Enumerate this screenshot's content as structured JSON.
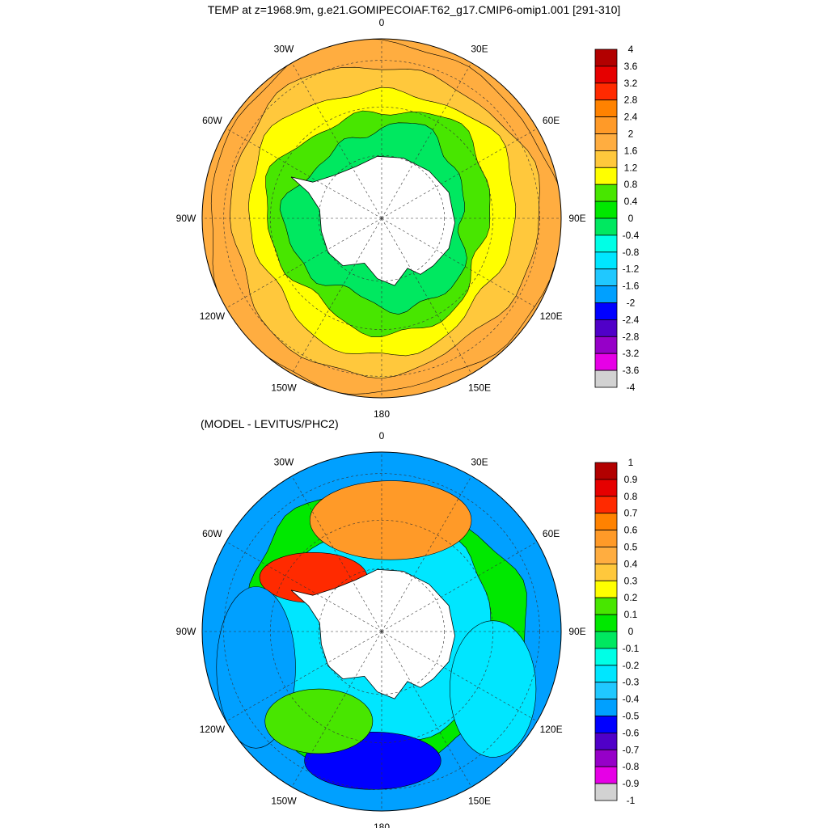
{
  "title": "TEMP at z=1968.9m, g.e21.GOMIPECOIAF.T62_g17.CMIP6-omip1.001 [291-310]",
  "subtitle": "(MODEL - LEVITUS/PHC2)",
  "chart_data": [
    {
      "type": "heatmap",
      "projection": "south polar stereographic",
      "lon_labels": [
        "0",
        "30E",
        "60E",
        "90E",
        "120E",
        "150E",
        "180",
        "150W",
        "120W",
        "90W",
        "60W",
        "30W"
      ],
      "colorbar": {
        "labels": [
          "4",
          "3.6",
          "3.2",
          "2.8",
          "2.4",
          "2",
          "1.6",
          "1.2",
          "0.8",
          "0.4",
          "0",
          "-0.4",
          "-0.8",
          "-1.2",
          "-1.6",
          "-2",
          "-2.4",
          "-2.8",
          "-3.2",
          "-3.6",
          "-4"
        ],
        "colors": [
          "#b20000",
          "#e60000",
          "#ff2a00",
          "#ff8200",
          "#ff9a28",
          "#ffad40",
          "#ffc83c",
          "#ffff00",
          "#48e600",
          "#00e800",
          "#00e860",
          "#00ffe6",
          "#00e6ff",
          "#20c8ff",
          "#00a0ff",
          "#0000ff",
          "#5000c8",
          "#9600c8",
          "#e600e6",
          "#d2d2d2"
        ]
      },
      "rings": [
        {
          "color": "#ffad40"
        },
        {
          "color": "#ffc83c"
        },
        {
          "color": "#ffff00"
        },
        {
          "color": "#48e600"
        },
        {
          "color": "#00e860"
        }
      ]
    },
    {
      "type": "heatmap",
      "projection": "south polar stereographic",
      "lon_labels": [
        "0",
        "30E",
        "60E",
        "90E",
        "120E",
        "150E",
        "180",
        "150W",
        "120W",
        "90W",
        "60W",
        "30W"
      ],
      "colorbar": {
        "labels": [
          "1",
          "0.9",
          "0.8",
          "0.7",
          "0.6",
          "0.5",
          "0.4",
          "0.3",
          "0.2",
          "0.1",
          "0",
          "-0.1",
          "-0.2",
          "-0.3",
          "-0.4",
          "-0.5",
          "-0.6",
          "-0.7",
          "-0.8",
          "-0.9",
          "-1"
        ],
        "colors": [
          "#b20000",
          "#e60000",
          "#ff2a00",
          "#ff8200",
          "#ff9a28",
          "#ffad40",
          "#ffc83c",
          "#ffff00",
          "#48e600",
          "#00e800",
          "#00e860",
          "#00ffe6",
          "#00e6ff",
          "#20c8ff",
          "#00a0ff",
          "#0000ff",
          "#5000c8",
          "#9600c8",
          "#e600e6",
          "#d2d2d2"
        ]
      },
      "blobs": [
        {
          "name": "atlantic-warm",
          "color": "#ff9a28"
        },
        {
          "name": "weddell-warm",
          "color": "#ff2a00"
        },
        {
          "name": "pacific-cold",
          "color": "#0000ff"
        },
        {
          "name": "indian-cold",
          "color": "#00e6ff"
        },
        {
          "name": "west-cold",
          "color": "#00a0ff"
        },
        {
          "name": "ross-green",
          "color": "#48e600"
        }
      ]
    }
  ]
}
